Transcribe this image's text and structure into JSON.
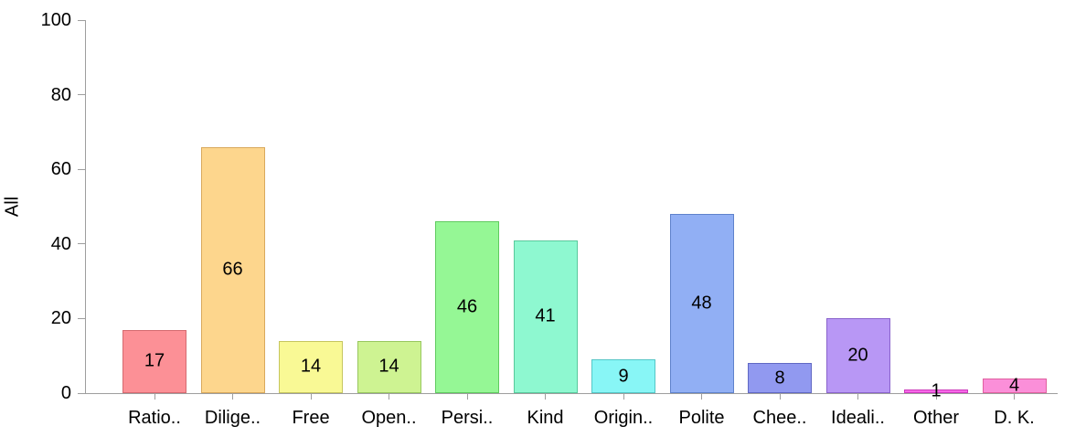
{
  "chart_data": {
    "type": "bar",
    "title": "",
    "xlabel": "",
    "ylabel": "All",
    "ylim": [
      0,
      100
    ],
    "y_ticks": [
      0,
      20,
      40,
      60,
      80,
      100
    ],
    "grid": false,
    "legend_position": "none",
    "value_labels_shown": true,
    "categories": [
      "Ratio..",
      "Dilige..",
      "Free",
      "Open..",
      "Persi..",
      "Kind",
      "Origin..",
      "Polite",
      "Chee..",
      "Ideali..",
      "Other",
      "D. K."
    ],
    "values": [
      17,
      66,
      14,
      14,
      46,
      41,
      9,
      48,
      8,
      20,
      1,
      4
    ],
    "bar_fill_colors": [
      "#FC9096",
      "#FDD68D",
      "#F9F995",
      "#CEF392",
      "#95F795",
      "#8EF8D0",
      "#88F6F6",
      "#91AFF4",
      "#9199F0",
      "#B897F5",
      "#F768E8",
      "#FB8FD9"
    ],
    "bar_border_colors": [
      "#D56A70",
      "#D9A95C",
      "#C6C65F",
      "#98C75E",
      "#5FCB5F",
      "#58C99C",
      "#53C6C6",
      "#5F82CC",
      "#6068C4",
      "#8A63CC",
      "#CC39BC",
      "#E0609F"
    ],
    "axis_color": "#9e9e9e",
    "text_color": "#000000",
    "background_color": "#ffffff"
  }
}
